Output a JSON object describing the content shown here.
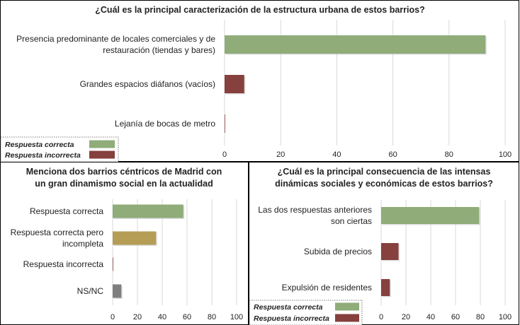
{
  "colors": {
    "correct": "#8fac79",
    "incorrect": "#86403e",
    "partial": "#b59d55",
    "nsnc": "#7f7f7f",
    "grid": "#d9d9d9",
    "frame": "#000000"
  },
  "legend_top": {
    "items": [
      {
        "label": "Respuesta correcta",
        "color": "#8fac79"
      },
      {
        "label": "Respuesta incorrecta",
        "color": "#86403e"
      }
    ]
  },
  "legend_bottom_right": {
    "items": [
      {
        "label": "Respuesta correcta",
        "color": "#8fac79"
      },
      {
        "label": "Respuesta incorrecta",
        "color": "#86403e"
      }
    ]
  },
  "chart_data": [
    {
      "type": "bar",
      "orientation": "horizontal",
      "title": "¿Cuál es la principal caracterización de la estructura urbana de estos barrios?",
      "categories": [
        [
          "Presencia predominante de locales comerciales y de",
          "restauración (tiendas y bares)"
        ],
        [
          "Grandes espacios diáfanos (vacíos)"
        ],
        [
          "Lejanía de bocas de metro"
        ]
      ],
      "values": [
        93,
        7,
        0
      ],
      "colors": [
        "#8fac79",
        "#86403e",
        "#86403e"
      ],
      "xlim": [
        0,
        100
      ],
      "xticks": [
        "0",
        "20",
        "40",
        "60",
        "80",
        "100"
      ],
      "grid": true,
      "legend": "bottom-left"
    },
    {
      "type": "bar",
      "orientation": "horizontal",
      "title": [
        "Menciona dos barrios céntricos de Madrid con",
        "un gran dinamismo social en la actualidad"
      ],
      "categories": [
        [
          "Respuesta correcta"
        ],
        [
          "Respuesta correcta pero",
          "incompleta"
        ],
        [
          "Respuesta incorrecta"
        ],
        [
          "NS/NC"
        ]
      ],
      "values": [
        57,
        35,
        0,
        7
      ],
      "colors": [
        "#8fac79",
        "#b59d55",
        "#86403e",
        "#7f7f7f"
      ],
      "xlim": [
        0,
        100
      ],
      "xticks": [
        "0",
        "20",
        "40",
        "60",
        "80",
        "100"
      ],
      "grid": true
    },
    {
      "type": "bar",
      "orientation": "horizontal",
      "title": [
        "¿Cuál es la principal consecuencia de las intensas",
        "dinámicas sociales y económicas de estos barrios?"
      ],
      "categories": [
        [
          "Las dos respuestas anteriores",
          "son ciertas"
        ],
        [
          "Subida de precios"
        ],
        [
          "Expulsión de residentes"
        ]
      ],
      "values": [
        79,
        14,
        7
      ],
      "colors": [
        "#8fac79",
        "#86403e",
        "#86403e"
      ],
      "xlim": [
        0,
        100
      ],
      "xticks": [
        "0",
        "20",
        "40",
        "60",
        "80",
        "100"
      ],
      "grid": true,
      "legend": "bottom-left"
    }
  ]
}
